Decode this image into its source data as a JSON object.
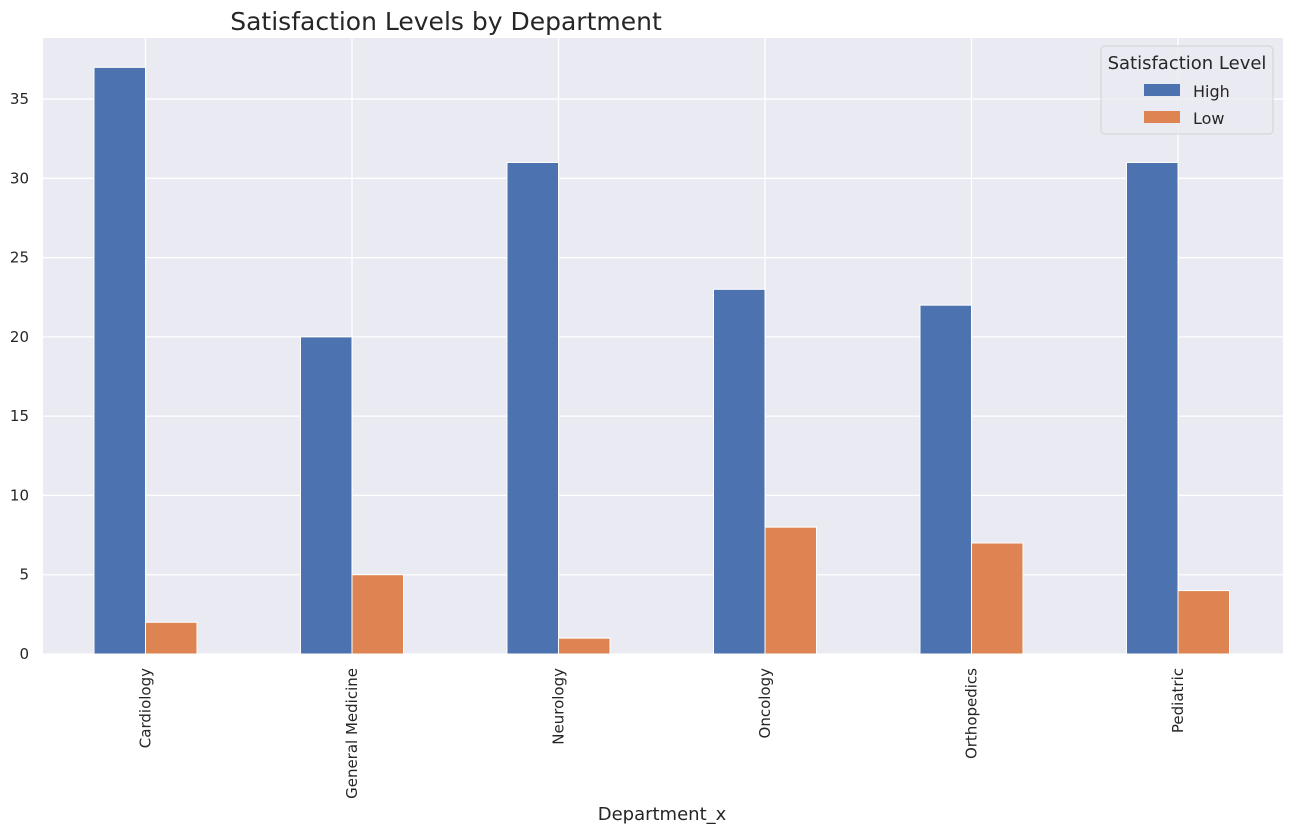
{
  "chart_data": {
    "type": "bar",
    "title": "Satisfaction Levels by Department",
    "xlabel": "Department_x",
    "ylabel": "",
    "categories": [
      "Cardiology",
      "General Medicine",
      "Neurology",
      "Oncology",
      "Orthopedics",
      "Pediatric"
    ],
    "series": [
      {
        "name": "High",
        "values": [
          37,
          20,
          31,
          23,
          22,
          31
        ],
        "color": "#4c72b0"
      },
      {
        "name": "Low",
        "values": [
          2,
          5,
          1,
          8,
          7,
          4
        ],
        "color": "#dd8452"
      }
    ],
    "ylim": [
      0,
      38.85
    ],
    "yticks": [
      0,
      5,
      10,
      15,
      20,
      25,
      30,
      35
    ],
    "grid": true,
    "legend": {
      "title": "Satisfaction Level",
      "position": "top-right"
    },
    "colors": {
      "plot_background": "#eaeaf2",
      "grid": "#ffffff",
      "text": "#262626"
    }
  }
}
